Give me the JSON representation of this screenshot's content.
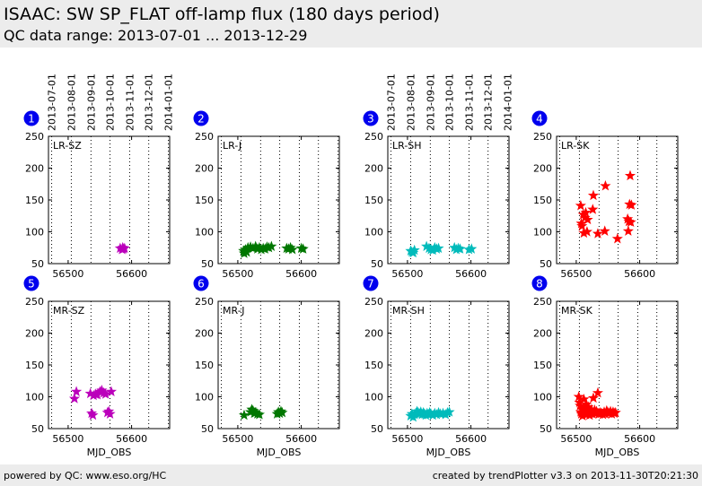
{
  "header": {
    "title": "ISAAC: SW SP_FLAT off-lamp flux (180 days period)",
    "subtitle": "QC data range: 2013-07-01 ... 2013-12-29"
  },
  "footer": {
    "left": "powered by QC: www.eso.org/HC",
    "right": "created by trendPlotter v3.3 on 2013-11-30T20:21:30"
  },
  "colors": {
    "panel_badge": "#0000ee",
    "grid": "#000000",
    "magenta": "#bb00bb",
    "green": "#007700",
    "cyan": "#00bbbb",
    "red": "#ff0000"
  },
  "chart_data": {
    "type": "scatter",
    "marker": "star",
    "grid": "vertical dotted lines at date ticks",
    "x_axis": {
      "label": "MJD_OBS",
      "xlim": [
        56469,
        56660
      ],
      "ticks": [
        56500,
        56600
      ],
      "tick_labels": [
        "56500",
        "56600"
      ]
    },
    "date_axis": {
      "ticks": [
        56474,
        56505,
        56536,
        56566,
        56597,
        56627,
        56658
      ],
      "tick_labels": [
        "2013-07-01",
        "2013-08-01",
        "2013-09-01",
        "2013-10-01",
        "2013-11-01",
        "2013-12-01",
        "2014-01-01"
      ]
    },
    "y_axis": {
      "ylim": [
        50,
        250
      ],
      "ticks": [
        50,
        100,
        150,
        200,
        250
      ],
      "tick_labels": [
        "50",
        "100",
        "150",
        "200",
        "250"
      ]
    },
    "panels": [
      {
        "number": "1",
        "label": "LR-SZ",
        "color": "#bb00bb",
        "points": [
          [
            56582,
            74
          ],
          [
            56585,
            72
          ],
          [
            56586,
            75
          ],
          [
            56587,
            73
          ],
          [
            56589,
            74
          ]
        ]
      },
      {
        "number": "2",
        "label": "LR-J",
        "color": "#007700",
        "points": [
          [
            56509,
            70
          ],
          [
            56510,
            66
          ],
          [
            56512,
            72
          ],
          [
            56514,
            68
          ],
          [
            56516,
            75
          ],
          [
            56520,
            76
          ],
          [
            56524,
            74
          ],
          [
            56528,
            77
          ],
          [
            56531,
            73
          ],
          [
            56534,
            75
          ],
          [
            56537,
            72
          ],
          [
            56540,
            74
          ],
          [
            56543,
            73
          ],
          [
            56546,
            76
          ],
          [
            56549,
            75
          ],
          [
            56553,
            77
          ],
          [
            56577,
            74
          ],
          [
            56580,
            73
          ],
          [
            56583,
            75
          ],
          [
            56586,
            72
          ],
          [
            56600,
            74
          ],
          [
            56603,
            73
          ]
        ]
      },
      {
        "number": "3",
        "label": "LR-SH",
        "color": "#00bbbb",
        "points": [
          [
            56505,
            70
          ],
          [
            56507,
            68
          ],
          [
            56509,
            67
          ],
          [
            56511,
            71
          ],
          [
            56530,
            77
          ],
          [
            56534,
            74
          ],
          [
            56537,
            72
          ],
          [
            56540,
            71
          ],
          [
            56543,
            75
          ],
          [
            56546,
            73
          ],
          [
            56549,
            74
          ],
          [
            56574,
            75
          ],
          [
            56577,
            72
          ],
          [
            56580,
            74
          ],
          [
            56583,
            73
          ],
          [
            56597,
            72
          ],
          [
            56601,
            73
          ]
        ]
      },
      {
        "number": "4",
        "label": "LR-SK",
        "color": "#ff0000",
        "points": [
          [
            56507,
            141
          ],
          [
            56508,
            113
          ],
          [
            56509,
            109
          ],
          [
            56511,
            127
          ],
          [
            56512,
            98
          ],
          [
            56514,
            122
          ],
          [
            56515,
            130
          ],
          [
            56517,
            100
          ],
          [
            56518,
            119
          ],
          [
            56526,
            135
          ],
          [
            56527,
            157
          ],
          [
            56534,
            97
          ],
          [
            56545,
            101
          ],
          [
            56546,
            172
          ],
          [
            56565,
            89
          ],
          [
            56581,
            120
          ],
          [
            56582,
            101
          ],
          [
            56583,
            116
          ],
          [
            56584,
            143
          ],
          [
            56585,
            188
          ],
          [
            56586,
            115
          ],
          [
            56587,
            142
          ]
        ]
      },
      {
        "number": "5",
        "label": "MR-SZ",
        "color": "#bb00bb",
        "points": [
          [
            56510,
            97
          ],
          [
            56513,
            108
          ],
          [
            56535,
            105
          ],
          [
            56537,
            74
          ],
          [
            56539,
            71
          ],
          [
            56540,
            102
          ],
          [
            56543,
            104
          ],
          [
            56546,
            103
          ],
          [
            56550,
            108
          ],
          [
            56553,
            110
          ],
          [
            56556,
            106
          ],
          [
            56559,
            104
          ],
          [
            56562,
            75
          ],
          [
            56564,
            77
          ],
          [
            56566,
            73
          ],
          [
            56568,
            108
          ]
        ]
      },
      {
        "number": "6",
        "label": "MR-J",
        "color": "#007700",
        "points": [
          [
            56510,
            71
          ],
          [
            56520,
            76
          ],
          [
            56522,
            80
          ],
          [
            56524,
            78
          ],
          [
            56526,
            74
          ],
          [
            56528,
            75
          ],
          [
            56531,
            73
          ],
          [
            56534,
            72
          ],
          [
            56562,
            73
          ],
          [
            56564,
            76
          ],
          [
            56566,
            74
          ],
          [
            56568,
            77
          ],
          [
            56570,
            75
          ]
        ]
      },
      {
        "number": "7",
        "label": "MR-SH",
        "color": "#00bbbb",
        "points": [
          [
            56505,
            70
          ],
          [
            56507,
            73
          ],
          [
            56509,
            68
          ],
          [
            56511,
            72
          ],
          [
            56513,
            74
          ],
          [
            56515,
            77
          ],
          [
            56517,
            75
          ],
          [
            56519,
            73
          ],
          [
            56521,
            76
          ],
          [
            56523,
            72
          ],
          [
            56525,
            75
          ],
          [
            56527,
            73
          ],
          [
            56529,
            71
          ],
          [
            56531,
            74
          ],
          [
            56533,
            72
          ],
          [
            56535,
            75
          ],
          [
            56537,
            73
          ],
          [
            56540,
            71
          ],
          [
            56543,
            74
          ],
          [
            56546,
            72
          ],
          [
            56549,
            75
          ],
          [
            56552,
            73
          ],
          [
            56556,
            74
          ],
          [
            56560,
            72
          ],
          [
            56563,
            75
          ],
          [
            56566,
            76
          ]
        ]
      },
      {
        "number": "8",
        "label": "MR-SK",
        "color": "#ff0000",
        "points": [
          [
            56504,
            100
          ],
          [
            56505,
            91
          ],
          [
            56506,
            86
          ],
          [
            56507,
            76
          ],
          [
            56508,
            73
          ],
          [
            56509,
            80
          ],
          [
            56510,
            70
          ],
          [
            56511,
            82
          ],
          [
            56512,
            96
          ],
          [
            56513,
            75
          ],
          [
            56514,
            79
          ],
          [
            56515,
            72
          ],
          [
            56516,
            88
          ],
          [
            56517,
            77
          ],
          [
            56518,
            73
          ],
          [
            56519,
            84
          ],
          [
            56520,
            78
          ],
          [
            56521,
            71
          ],
          [
            56522,
            76
          ],
          [
            56523,
            74
          ],
          [
            56524,
            80
          ],
          [
            56525,
            77
          ],
          [
            56526,
            73
          ],
          [
            56527,
            98
          ],
          [
            56528,
            75
          ],
          [
            56529,
            79
          ],
          [
            56530,
            74
          ],
          [
            56532,
            77
          ],
          [
            56534,
            106
          ],
          [
            56536,
            73
          ],
          [
            56538,
            75
          ],
          [
            56540,
            74
          ],
          [
            56542,
            72
          ],
          [
            56544,
            76
          ],
          [
            56546,
            73
          ],
          [
            56548,
            78
          ],
          [
            56550,
            75
          ],
          [
            56552,
            74
          ],
          [
            56554,
            77
          ],
          [
            56556,
            73
          ],
          [
            56558,
            76
          ],
          [
            56560,
            74
          ],
          [
            56562,
            75
          ]
        ]
      }
    ]
  }
}
